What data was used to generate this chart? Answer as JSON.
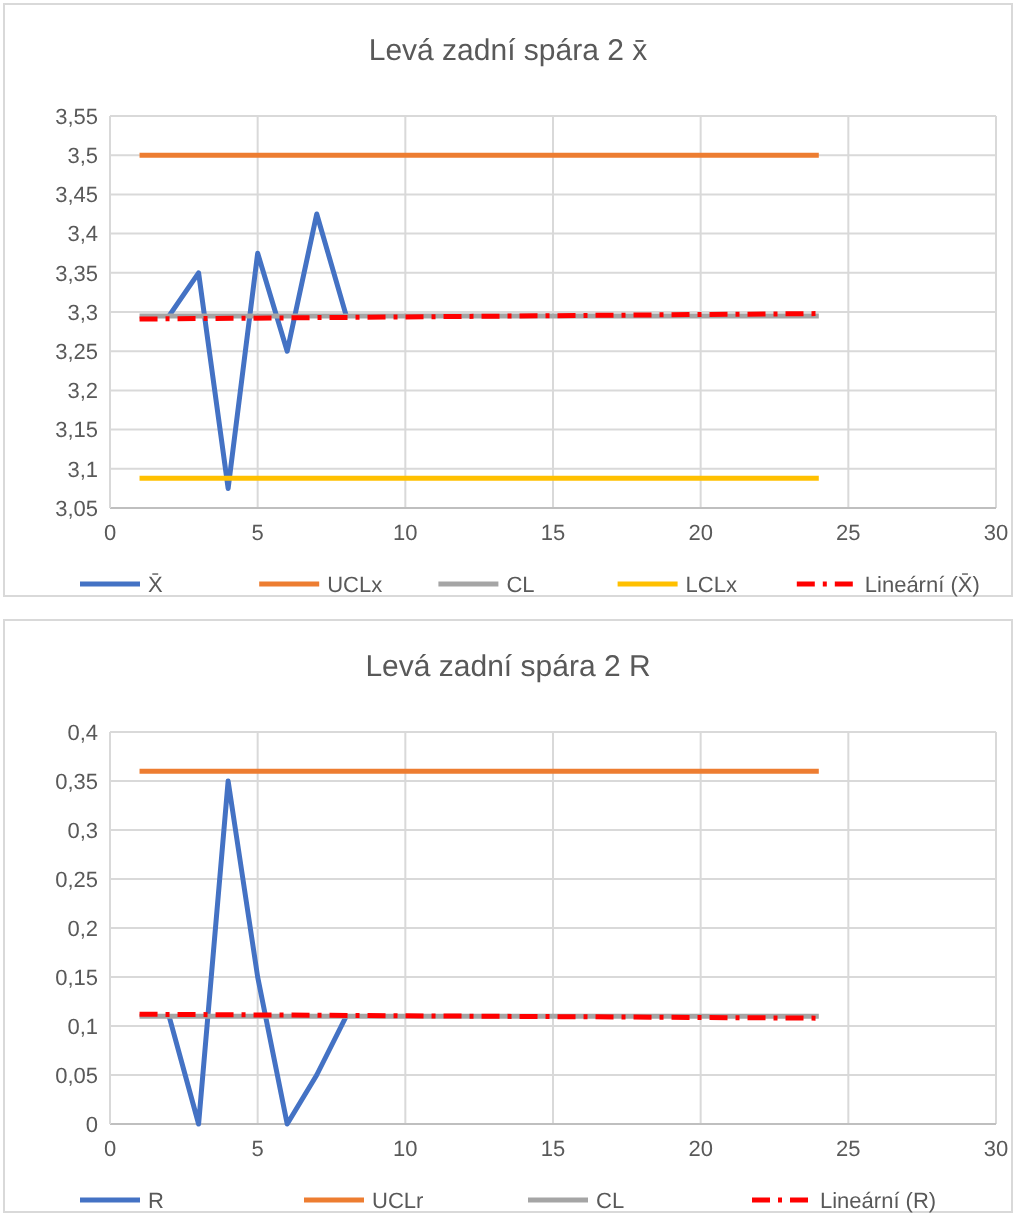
{
  "chart_data": [
    {
      "type": "line",
      "title": "Levá zadní spára 2 x̄",
      "xlim": [
        0,
        30
      ],
      "xticks": [
        0,
        5,
        10,
        15,
        20,
        25,
        30
      ],
      "ylim": [
        3.05,
        3.55
      ],
      "yticks": [
        {
          "value": 3.05,
          "label": "3,05"
        },
        {
          "value": 3.1,
          "label": "3,1"
        },
        {
          "value": 3.15,
          "label": "3,15"
        },
        {
          "value": 3.2,
          "label": "3,2"
        },
        {
          "value": 3.25,
          "label": "3,25"
        },
        {
          "value": 3.3,
          "label": "3,3"
        },
        {
          "value": 3.35,
          "label": "3,35"
        },
        {
          "value": 3.4,
          "label": "3,4"
        },
        {
          "value": 3.45,
          "label": "3,45"
        },
        {
          "value": 3.5,
          "label": "3,5"
        },
        {
          "value": 3.55,
          "label": "3,55"
        }
      ],
      "grid": true,
      "legend": "bottom",
      "marker": "none",
      "series": [
        {
          "name": "X̄",
          "color": "#4472c4",
          "x": [
            2,
            3,
            4,
            5,
            6,
            7,
            8
          ],
          "values": [
            3.295,
            3.35,
            3.075,
            3.375,
            3.25,
            3.425,
            3.295
          ]
        },
        {
          "name": "UCLx",
          "color": "#ed7d31",
          "x": [
            1,
            24
          ],
          "values": [
            3.5,
            3.5
          ]
        },
        {
          "name": "CL",
          "color": "#a5a5a5",
          "x": [
            1,
            24
          ],
          "values": [
            3.295,
            3.295
          ]
        },
        {
          "name": "LCLx",
          "color": "#ffc000",
          "x": [
            1,
            24
          ],
          "values": [
            3.088,
            3.088
          ]
        },
        {
          "name": "Lineární (X̄)",
          "color": "#ff0000",
          "line_style": "dashed",
          "x": [
            1,
            24
          ],
          "values": [
            3.291,
            3.298
          ]
        }
      ]
    },
    {
      "type": "line",
      "title": "Levá zadní spára 2 R",
      "xlim": [
        0,
        30
      ],
      "xticks": [
        0,
        5,
        10,
        15,
        20,
        25,
        30
      ],
      "ylim": [
        0,
        0.4
      ],
      "yticks": [
        {
          "value": 0,
          "label": "0"
        },
        {
          "value": 0.05,
          "label": "0,05"
        },
        {
          "value": 0.1,
          "label": "0,1"
        },
        {
          "value": 0.15,
          "label": "0,15"
        },
        {
          "value": 0.2,
          "label": "0,2"
        },
        {
          "value": 0.25,
          "label": "0,25"
        },
        {
          "value": 0.3,
          "label": "0,3"
        },
        {
          "value": 0.35,
          "label": "0,35"
        },
        {
          "value": 0.4,
          "label": "0,4"
        }
      ],
      "grid": true,
      "legend": "bottom",
      "marker": "none",
      "series": [
        {
          "name": "R",
          "color": "#4472c4",
          "x": [
            2,
            3,
            4,
            5,
            6,
            7,
            8
          ],
          "values": [
            0.11,
            0,
            0.35,
            0.15,
            0,
            0.05,
            0.11
          ]
        },
        {
          "name": "UCLr",
          "color": "#ed7d31",
          "x": [
            1,
            24
          ],
          "values": [
            0.36,
            0.36
          ]
        },
        {
          "name": "CL",
          "color": "#a5a5a5",
          "x": [
            1,
            24
          ],
          "values": [
            0.11,
            0.11
          ]
        },
        {
          "name": "Lineární (R)",
          "color": "#ff0000",
          "line_style": "dashed",
          "x": [
            1,
            24
          ],
          "values": [
            0.112,
            0.108
          ]
        }
      ]
    }
  ]
}
